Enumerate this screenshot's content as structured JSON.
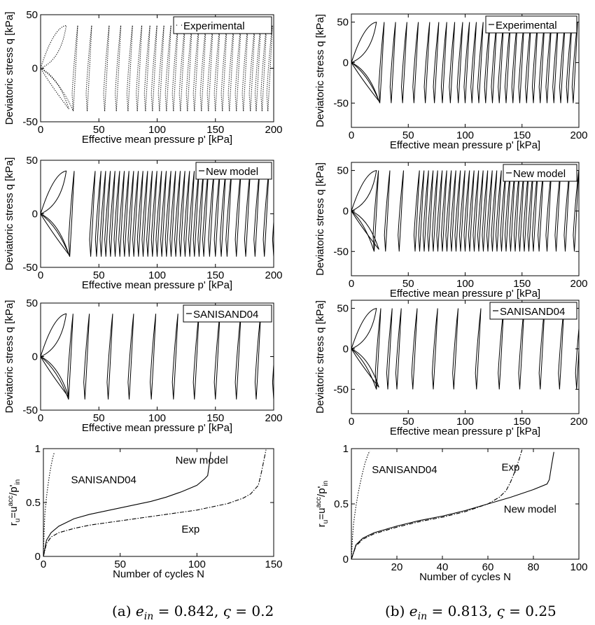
{
  "colors": {
    "line": "#000000",
    "background": "#ffffff"
  },
  "chart_data": [
    {
      "id": "a1",
      "type": "line",
      "series_style": "dotted",
      "xlabel": "Effective mean pressure p' [kPa]",
      "ylabel": "Deviatoric stress q [kPa]",
      "xlim": [
        0,
        200
      ],
      "ylim": [
        -50,
        50
      ],
      "xticks": [
        "0",
        "50",
        "100",
        "150",
        "200"
      ],
      "yticks": [
        "-50",
        "0",
        "50"
      ],
      "legend": "Experimental",
      "legend_position": "top-right",
      "q_amplitude": 40,
      "p_initial": 200,
      "loop_p_values": [
        0,
        28,
        40,
        55,
        65,
        75,
        83,
        90,
        96,
        102,
        108,
        114,
        120,
        126,
        132,
        138,
        144,
        150,
        156,
        162,
        168,
        174,
        180,
        185,
        190,
        195
      ]
    },
    {
      "id": "b1",
      "type": "line",
      "series_style": "solid",
      "xlabel": "Effective mean pressure p' [kPa]",
      "ylabel": "Deviatoric stress q [kPa]",
      "xlim": [
        0,
        200
      ],
      "ylim": [
        -80,
        60
      ],
      "xticks": [
        "0",
        "50",
        "100",
        "150",
        "200"
      ],
      "yticks": [
        "-50",
        "0",
        "50"
      ],
      "legend": "Experimental",
      "legend_position": "top-right",
      "q_amplitude": 50,
      "p_initial": 200,
      "loop_p_values": [
        0,
        25,
        35,
        45,
        55,
        65,
        73,
        80,
        87,
        94,
        100,
        106,
        112,
        118,
        124,
        130,
        136,
        142,
        148,
        154,
        160,
        166,
        172,
        178,
        184,
        190,
        195
      ]
    },
    {
      "id": "a2",
      "type": "line",
      "series_style": "solid",
      "xlabel": "Effective mean pressure p' [kPa]",
      "ylabel": "Deviatoric stress q [kPa]",
      "xlim": [
        0,
        200
      ],
      "ylim": [
        -50,
        50
      ],
      "xticks": [
        "0",
        "50",
        "100",
        "150",
        "200"
      ],
      "yticks": [
        "-50",
        "0",
        "50"
      ],
      "legend": "New model",
      "legend_position": "top-right",
      "q_amplitude": 40,
      "p_initial": 200,
      "loop_p_values": [
        0,
        25,
        43,
        48,
        52,
        56,
        60,
        64,
        68,
        72,
        76,
        80,
        84,
        88,
        92,
        96,
        100,
        104,
        108,
        112,
        116,
        120,
        124,
        128,
        132,
        136,
        140,
        145,
        150,
        155,
        160,
        168,
        176,
        184,
        192,
        200
      ]
    },
    {
      "id": "b2",
      "type": "line",
      "series_style": "solid",
      "xlabel": "Effective mean pressure p' [kPa]",
      "ylabel": "Deviatoric stress q [kPa]",
      "xlim": [
        0,
        200
      ],
      "ylim": [
        -80,
        60
      ],
      "xticks": [
        "0",
        "50",
        "100",
        "150",
        "200"
      ],
      "yticks": [
        "-50",
        "0",
        "50"
      ],
      "legend": "New model",
      "legend_position": "top-right",
      "q_amplitude": 50,
      "p_initial": 200,
      "loop_p_values": [
        0,
        20,
        30,
        42,
        56,
        60,
        64,
        68,
        72,
        76,
        80,
        84,
        88,
        92,
        96,
        100,
        104,
        108,
        112,
        116,
        120,
        124,
        128,
        132,
        136,
        140,
        144,
        148,
        152,
        156,
        160,
        165,
        172,
        180,
        188,
        196
      ]
    },
    {
      "id": "a3",
      "type": "line",
      "series_style": "solid",
      "xlabel": "Effective mean pressure p' [kPa]",
      "ylabel": "Deviatoric stress q [kPa]",
      "xlim": [
        0,
        200
      ],
      "ylim": [
        -50,
        50
      ],
      "xticks": [
        "0",
        "50",
        "100",
        "150",
        "200"
      ],
      "yticks": [
        "-50",
        "0",
        "50"
      ],
      "legend": "SANISAND04",
      "legend_position": "top-right",
      "q_amplitude": 40,
      "p_initial": 200,
      "loop_p_values": [
        0,
        24,
        38,
        58,
        76,
        95,
        114,
        132,
        150,
        168,
        185,
        200
      ]
    },
    {
      "id": "b3",
      "type": "line",
      "series_style": "solid",
      "xlabel": "Effective mean pressure p' [kPa]",
      "ylabel": "Deviatoric stress q [kPa]",
      "xlim": [
        0,
        200
      ],
      "ylim": [
        -80,
        60
      ],
      "xticks": [
        "0",
        "50",
        "100",
        "150",
        "200"
      ],
      "yticks": [
        "-50",
        "0",
        "50"
      ],
      "legend": "SANISAND04",
      "legend_position": "top-right",
      "q_amplitude": 50,
      "p_initial": 200,
      "loop_p_values": [
        0,
        22,
        32,
        40,
        54,
        72,
        90,
        110,
        130,
        148,
        166,
        183,
        198
      ]
    },
    {
      "id": "a4",
      "type": "line",
      "xlabel": "Number of cycles N",
      "ylabel_parts": [
        "r",
        "u",
        "=u",
        "acc",
        "/p'",
        "in"
      ],
      "xlim": [
        0,
        150
      ],
      "ylim": [
        0,
        1
      ],
      "xticks": [
        "0",
        "50",
        "100",
        "150"
      ],
      "yticks": [
        "0",
        "0.5",
        "1"
      ],
      "series": [
        {
          "label": "SANISAND04",
          "style": "dotted",
          "x": [
            0,
            0.5,
            1,
            2,
            3,
            4,
            5,
            6,
            7
          ],
          "y": [
            0,
            0.25,
            0.4,
            0.55,
            0.66,
            0.76,
            0.84,
            0.91,
            0.96
          ],
          "label_x": 18,
          "label_y": 0.68
        },
        {
          "label": "New model",
          "style": "solid",
          "x": [
            0,
            2,
            5,
            10,
            20,
            30,
            40,
            50,
            60,
            70,
            80,
            90,
            100,
            105,
            107,
            108,
            109
          ],
          "y": [
            0,
            0.15,
            0.22,
            0.28,
            0.35,
            0.39,
            0.42,
            0.45,
            0.48,
            0.51,
            0.55,
            0.6,
            0.66,
            0.72,
            0.75,
            0.85,
            0.97
          ],
          "label_x": 86,
          "label_y": 0.86
        },
        {
          "label": "Exp",
          "style": "dashdot",
          "x": [
            0,
            2,
            5,
            10,
            20,
            30,
            40,
            50,
            60,
            70,
            80,
            90,
            100,
            110,
            120,
            130,
            135,
            140,
            142,
            144,
            145
          ],
          "y": [
            0,
            0.12,
            0.18,
            0.22,
            0.26,
            0.29,
            0.31,
            0.33,
            0.35,
            0.37,
            0.39,
            0.41,
            0.43,
            0.46,
            0.49,
            0.54,
            0.58,
            0.66,
            0.78,
            0.92,
            0.99
          ],
          "label_x": 90,
          "label_y": 0.22
        }
      ]
    },
    {
      "id": "b4",
      "type": "line",
      "xlabel": "Number of cycles N",
      "ylabel_parts": [
        "r",
        "u",
        "=u",
        "acc",
        "/p'",
        "in"
      ],
      "xlim": [
        0,
        100
      ],
      "ylim": [
        0,
        1
      ],
      "xticks": [
        "20",
        "40",
        "60",
        "80",
        "100"
      ],
      "yticks": [
        "0",
        "0.5",
        "1"
      ],
      "series": [
        {
          "label": "SANISAND04",
          "style": "dotted",
          "x": [
            0,
            0.5,
            1,
            2,
            3,
            4,
            5,
            6,
            7,
            8
          ],
          "y": [
            0,
            0.2,
            0.33,
            0.48,
            0.6,
            0.7,
            0.79,
            0.87,
            0.93,
            0.98
          ],
          "label_x": 9,
          "label_y": 0.78
        },
        {
          "label": "Exp",
          "style": "dashdot",
          "x": [
            0,
            2,
            5,
            10,
            20,
            30,
            40,
            50,
            60,
            65,
            68,
            70,
            72,
            74,
            75
          ],
          "y": [
            0,
            0.12,
            0.18,
            0.23,
            0.29,
            0.34,
            0.38,
            0.43,
            0.5,
            0.56,
            0.62,
            0.7,
            0.8,
            0.92,
            0.99
          ],
          "label_x": 66,
          "label_y": 0.8
        },
        {
          "label": "New model",
          "style": "solid",
          "x": [
            0,
            2,
            5,
            10,
            20,
            30,
            40,
            50,
            60,
            70,
            80,
            86,
            87,
            88,
            89
          ],
          "y": [
            0,
            0.13,
            0.19,
            0.24,
            0.3,
            0.35,
            0.39,
            0.44,
            0.5,
            0.56,
            0.63,
            0.68,
            0.72,
            0.85,
            0.97
          ],
          "label_x": 67,
          "label_y": 0.42
        }
      ]
    }
  ],
  "captions": {
    "a": {
      "prefix": "(a) ",
      "e": "e",
      "e_sub": "in",
      "e_val": " = 0.842, ",
      "sym": "ς",
      "sym_val": " = 0.2"
    },
    "b": {
      "prefix": "(b) ",
      "e": "e",
      "e_sub": "in",
      "e_val": " = 0.813, ",
      "sym": "ς",
      "sym_val": " = 0.25"
    }
  }
}
